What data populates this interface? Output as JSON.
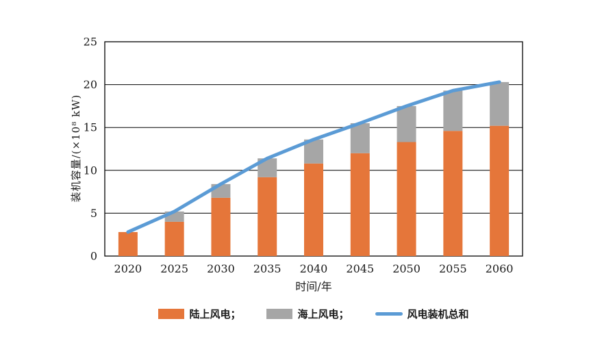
{
  "chart_data": {
    "type": "bar",
    "subtype": "stacked-bar-with-line-overlay",
    "title": "",
    "xlabel": "时间/年",
    "ylabel": "装机容量/(×10⁸ kW)",
    "categories": [
      "2020",
      "2025",
      "2030",
      "2035",
      "2040",
      "2045",
      "2050",
      "2055",
      "2060"
    ],
    "series": [
      {
        "name": "陆上风电",
        "type": "bar",
        "stack": "wind",
        "color": "#E5763A",
        "values": [
          2.8,
          4.0,
          6.8,
          9.2,
          10.8,
          12.0,
          13.3,
          14.6,
          15.2
        ]
      },
      {
        "name": "海上风电",
        "type": "bar",
        "stack": "wind",
        "color": "#A6A6A6",
        "values": [
          0,
          1.2,
          1.6,
          2.2,
          2.8,
          3.5,
          4.2,
          4.7,
          5.1
        ]
      },
      {
        "name": "风电装机总和",
        "type": "line",
        "color": "#5B9BD5",
        "values": [
          2.8,
          5.2,
          8.4,
          11.4,
          13.6,
          15.5,
          17.5,
          19.3,
          20.3
        ]
      }
    ],
    "ylim": [
      0,
      25
    ],
    "yticks": [
      0,
      5,
      10,
      15,
      20,
      25
    ],
    "grid": "horizontal",
    "axis_color": "#000000",
    "text_color": "#1a1a1a",
    "legend_position": "bottom",
    "legend": [
      {
        "label": "陆上风电；",
        "swatch": "bar",
        "color": "#E5763A"
      },
      {
        "label": "海上风电；",
        "swatch": "bar",
        "color": "#A6A6A6"
      },
      {
        "label": "风电装机总和",
        "swatch": "line",
        "color": "#5B9BD5"
      }
    ]
  }
}
